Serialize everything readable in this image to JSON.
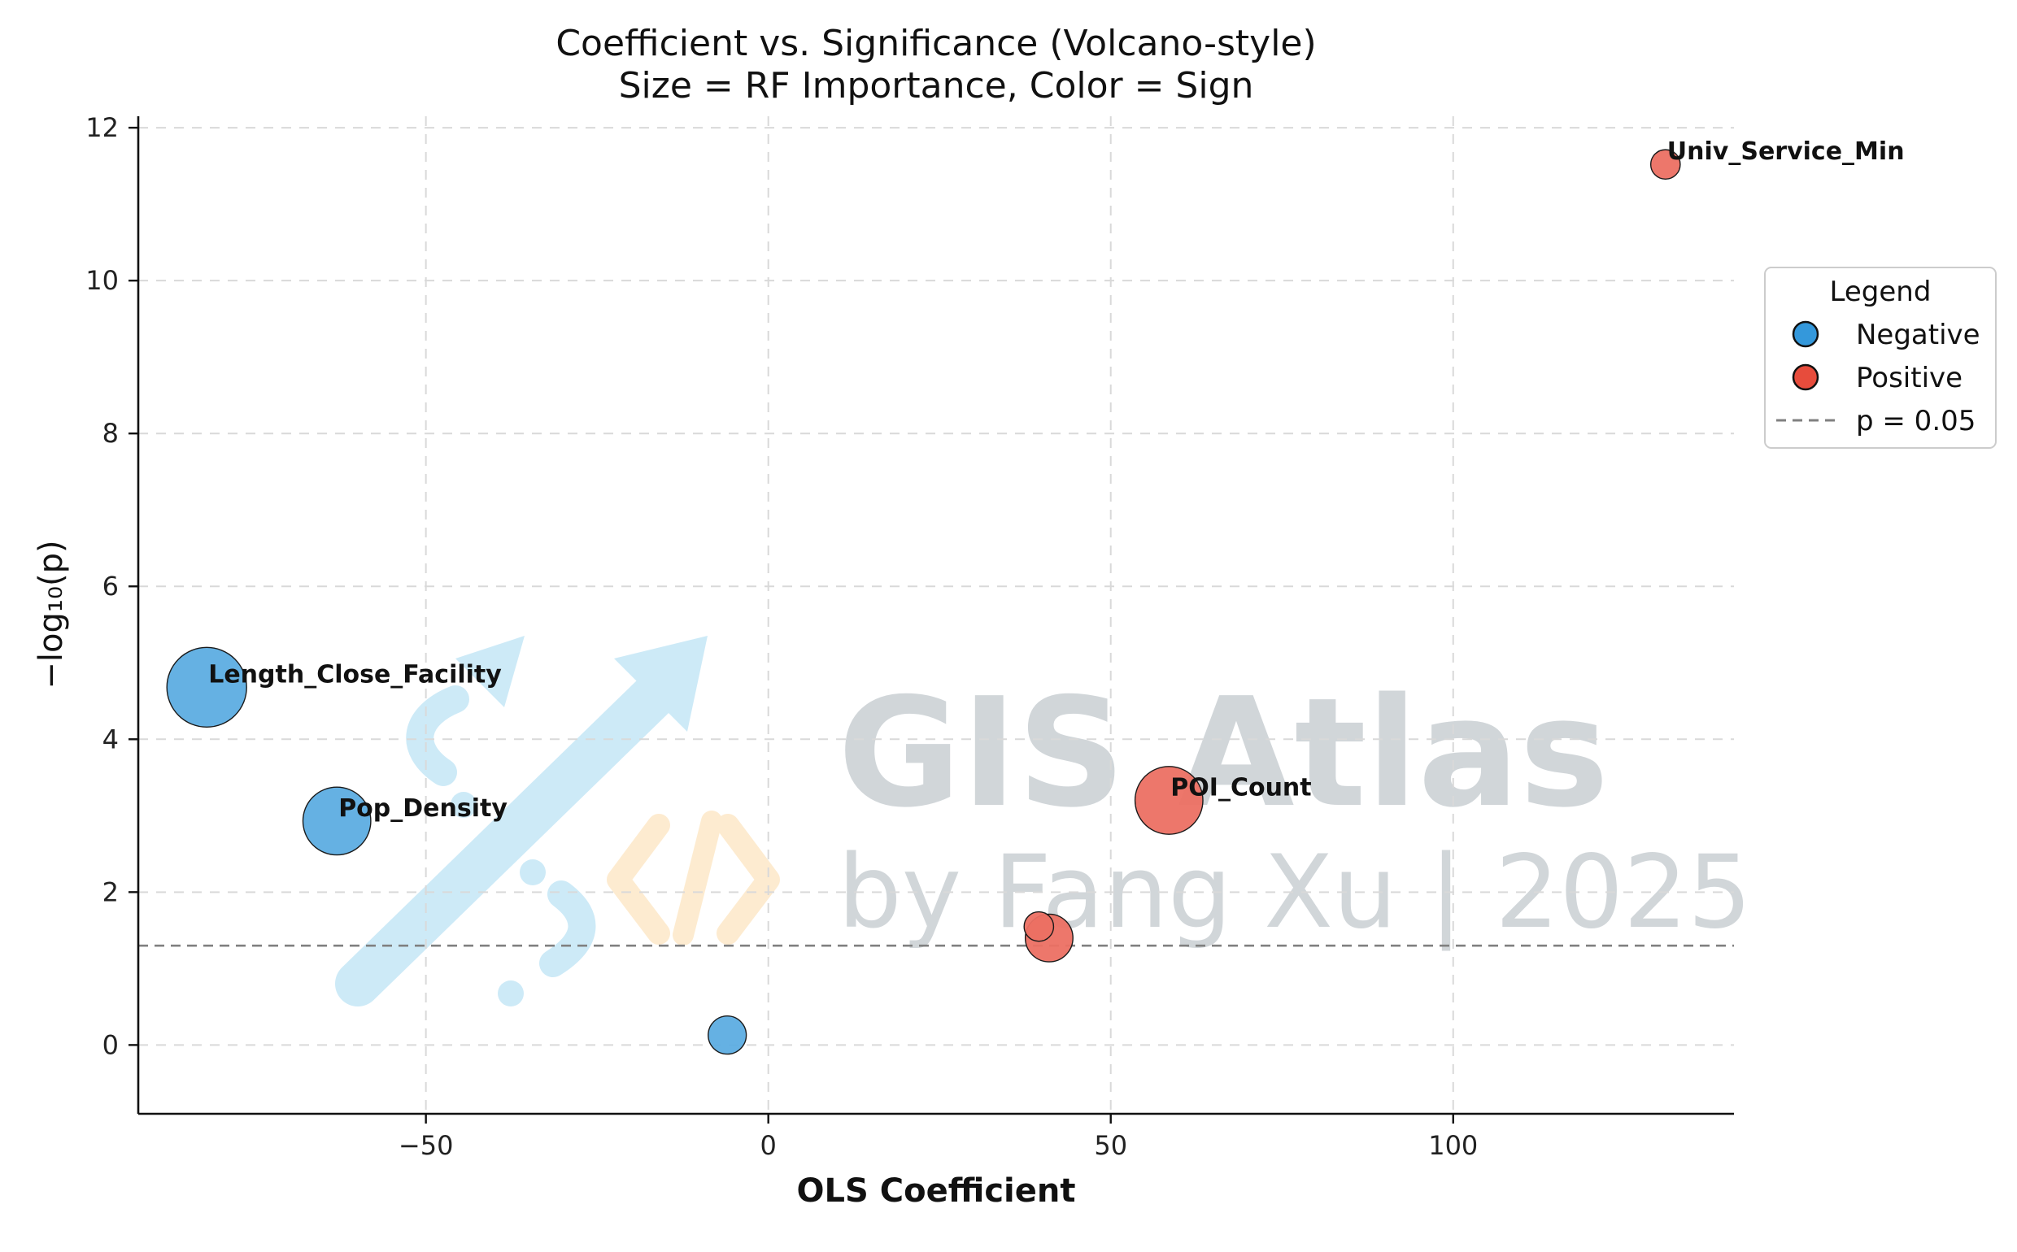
{
  "chart_data": {
    "type": "scatter",
    "title": "Coefficient vs. Significance (Volcano-style)",
    "subtitle": "Size = RF Importance, Color = Sign",
    "xlabel": "OLS Coefficient",
    "ylabel": "−log₁₀(p)",
    "xlim": [
      -92,
      141
    ],
    "ylim": [
      -0.9,
      12.15
    ],
    "xticks": [
      -50,
      0,
      50,
      100
    ],
    "xtick_labels": [
      "−50",
      "0",
      "50",
      "100"
    ],
    "yticks": [
      0,
      2,
      4,
      6,
      8,
      10,
      12
    ],
    "ytick_labels": [
      "0",
      "2",
      "4",
      "6",
      "8",
      "10",
      "12"
    ],
    "grid": true,
    "threshold": {
      "y": 1.3,
      "label": "p = 0.05"
    },
    "points": [
      {
        "x": -82,
        "y": 4.68,
        "size": 1.0,
        "sign": "Negative",
        "label": "Length_Close_Facility"
      },
      {
        "x": -63,
        "y": 2.93,
        "size": 0.7,
        "sign": "Negative",
        "label": "Pop_Density"
      },
      {
        "x": -6,
        "y": 0.13,
        "size": 0.16,
        "sign": "Negative",
        "label": ""
      },
      {
        "x": 58.5,
        "y": 3.2,
        "size": 0.7,
        "sign": "Positive",
        "label": "POI_Count"
      },
      {
        "x": 41,
        "y": 1.4,
        "size": 0.3,
        "sign": "Positive",
        "label": ""
      },
      {
        "x": 39.5,
        "y": 1.55,
        "size": 0.06,
        "sign": "Positive",
        "label": ""
      },
      {
        "x": 131,
        "y": 11.52,
        "size": 0.06,
        "sign": "Positive",
        "label": "Univ_Service_Min"
      }
    ],
    "legend": {
      "title": "Legend",
      "position": "right",
      "entries": [
        {
          "label": "Negative",
          "marker": "circle",
          "color": "#3498db"
        },
        {
          "label": "Positive",
          "marker": "circle",
          "color": "#e74c3c"
        },
        {
          "label": "p = 0.05",
          "marker": "dashed-line",
          "color": "#808080"
        }
      ]
    },
    "colors": {
      "Negative": "#5dade2",
      "Positive": "#ec7063",
      "threshold": "#808080"
    }
  },
  "watermark": {
    "line1": "GIS Atlas",
    "line2": "by Fang Xu | 2025"
  }
}
